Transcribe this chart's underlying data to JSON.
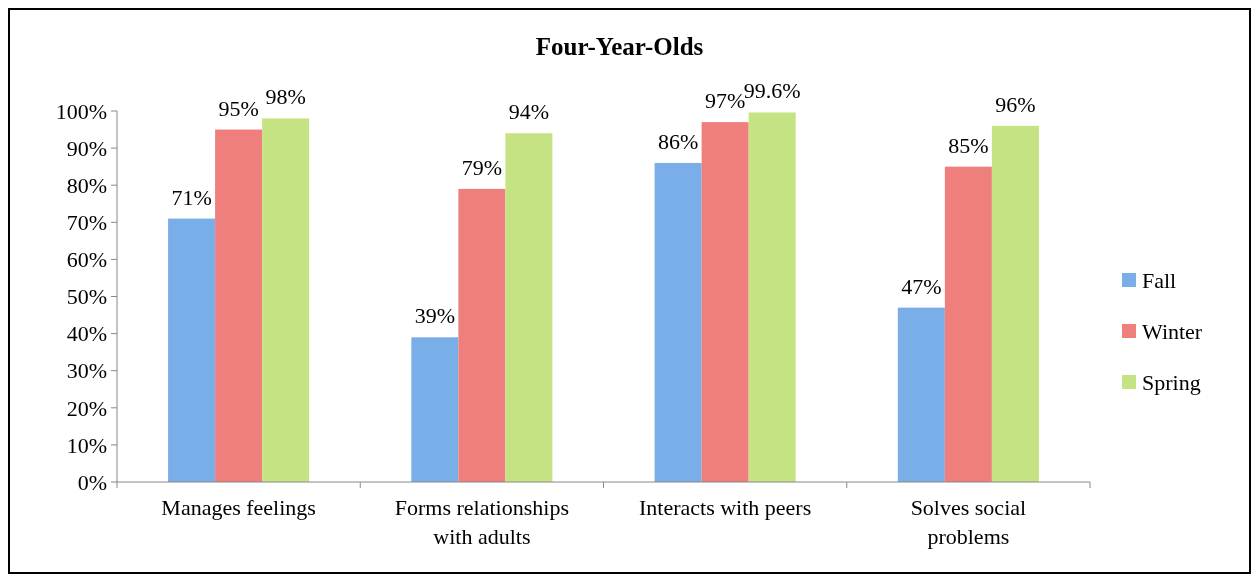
{
  "chart_data": {
    "type": "bar",
    "title": "Four-Year-Olds",
    "categories": [
      "Manages feelings",
      "Forms relationships with adults",
      "Interacts with peers",
      "Solves social problems"
    ],
    "series": [
      {
        "name": "Fall",
        "color": "#7aaee8",
        "values": [
          71,
          39,
          86,
          47
        ],
        "value_labels": [
          "71%",
          "39%",
          "86%",
          "47%"
        ]
      },
      {
        "name": "Winter",
        "color": "#ee7f7c",
        "values": [
          95,
          79,
          97,
          85
        ],
        "value_labels": [
          "95%",
          "79%",
          "97%",
          "85%"
        ]
      },
      {
        "name": "Spring",
        "color": "#c6e383",
        "values": [
          98,
          94,
          99.6,
          96
        ],
        "value_labels": [
          "98%",
          "94%",
          "99.6%",
          "96%"
        ]
      }
    ],
    "ylim": [
      0,
      100
    ],
    "yticks": [
      {
        "value": 0,
        "label": "0%"
      },
      {
        "value": 10,
        "label": "10%"
      },
      {
        "value": 20,
        "label": "20%"
      },
      {
        "value": 30,
        "label": "30%"
      },
      {
        "value": 40,
        "label": "40%"
      },
      {
        "value": 50,
        "label": "50%"
      },
      {
        "value": 60,
        "label": "60%"
      },
      {
        "value": 70,
        "label": "70%"
      },
      {
        "value": 80,
        "label": "80%"
      },
      {
        "value": 90,
        "label": "90%"
      },
      {
        "value": 100,
        "label": "100%"
      }
    ],
    "grid": false,
    "legend": "right"
  }
}
